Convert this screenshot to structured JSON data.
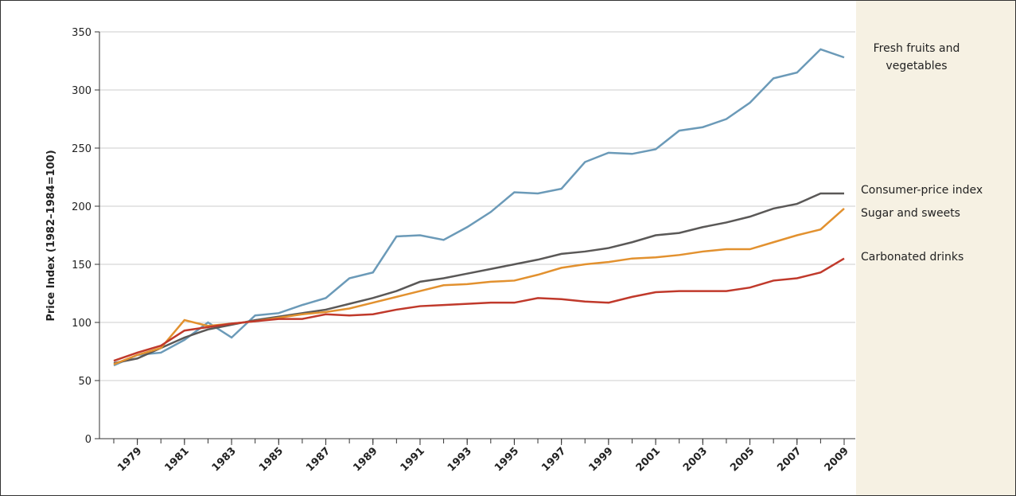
{
  "chart_data": {
    "type": "line",
    "y_label": "Price Index (1982–1984=100)",
    "x": [
      1978,
      1979,
      1980,
      1981,
      1982,
      1983,
      1984,
      1985,
      1986,
      1987,
      1988,
      1989,
      1990,
      1991,
      1992,
      1993,
      1994,
      1995,
      1996,
      1997,
      1998,
      1999,
      2000,
      2001,
      2002,
      2003,
      2004,
      2005,
      2006,
      2007,
      2008,
      2009
    ],
    "xlim": [
      1978,
      2009
    ],
    "xticks": [
      1979,
      1981,
      1983,
      1985,
      1987,
      1989,
      1991,
      1993,
      1995,
      1997,
      1999,
      2001,
      2003,
      2005,
      2007,
      2009
    ],
    "ylim": [
      0,
      350
    ],
    "yticks": [
      0,
      50,
      100,
      150,
      200,
      250,
      300,
      350
    ],
    "grid": true,
    "series": [
      {
        "name": "Fresh fruits and vegetables",
        "color": "#6b9ab8",
        "values": [
          63,
          72,
          74,
          85,
          100,
          87,
          106,
          108,
          115,
          121,
          138,
          143,
          174,
          175,
          171,
          182,
          195,
          212,
          211,
          215,
          238,
          246,
          245,
          249,
          265,
          268,
          275,
          289,
          310,
          315,
          335,
          328
        ]
      },
      {
        "name": "Consumer-price index",
        "color": "#5a5857",
        "values": [
          65,
          69,
          78,
          87,
          94,
          98,
          102,
          105,
          108,
          111,
          116,
          121,
          127,
          135,
          138,
          142,
          146,
          150,
          154,
          159,
          161,
          164,
          169,
          175,
          177,
          182,
          186,
          191,
          198,
          202,
          211,
          211
        ]
      },
      {
        "name": "Sugar and sweets",
        "color": "#e2912f",
        "values": [
          64,
          72,
          78,
          102,
          97,
          99,
          101,
          104,
          107,
          109,
          112,
          117,
          122,
          127,
          132,
          133,
          135,
          136,
          141,
          147,
          150,
          152,
          155,
          156,
          158,
          161,
          163,
          163,
          169,
          175,
          180,
          198
        ]
      },
      {
        "name": "Carbonated drinks",
        "color": "#c0392b",
        "values": [
          67,
          74,
          80,
          93,
          96,
          99,
          101,
          103,
          103,
          107,
          106,
          107,
          111,
          114,
          115,
          116,
          117,
          117,
          121,
          120,
          118,
          117,
          122,
          126,
          127,
          127,
          127,
          130,
          136,
          138,
          143,
          155
        ]
      }
    ]
  }
}
